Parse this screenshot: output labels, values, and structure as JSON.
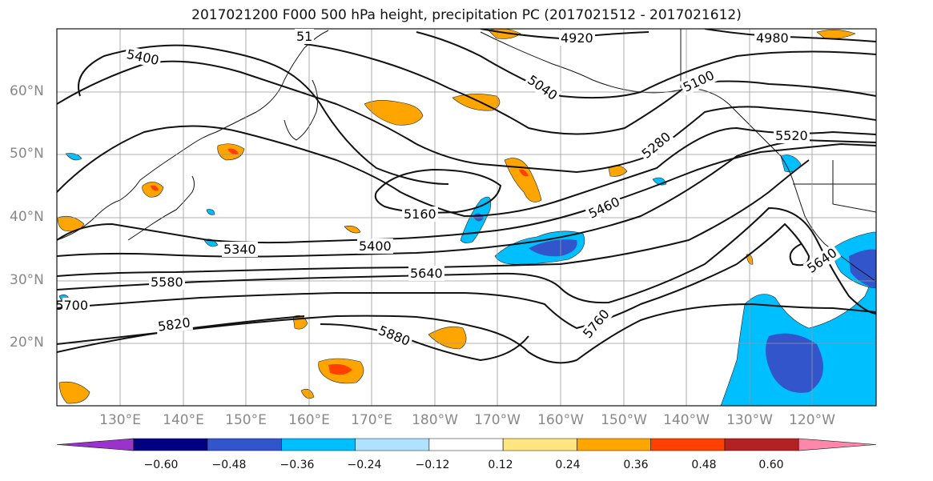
{
  "title": "2017021200 F000 500 hPa height, precipitation PC (2017021512 - 2017021612)",
  "lat_labels": [
    "60°N",
    "50°N",
    "40°N",
    "30°N",
    "20°N"
  ],
  "lon_labels": [
    "130°E",
    "140°E",
    "150°E",
    "160°E",
    "170°E",
    "180°W",
    "170°W",
    "160°W",
    "150°W",
    "140°W",
    "130°W",
    "120°W"
  ],
  "contour_labels": [
    "4920",
    "4980",
    "5040",
    "5100",
    "5160",
    "5280",
    "5340",
    "5400",
    "5400",
    "5460",
    "5520",
    "5580",
    "5640",
    "5640",
    "5700",
    "5760",
    "5820",
    "5880",
    "51"
  ],
  "colorbar": {
    "ticks": [
      "−0.60",
      "−0.48",
      "−0.36",
      "−0.24",
      "−0.12",
      "0.12",
      "0.24",
      "0.36",
      "0.48",
      "0.60"
    ],
    "colors": [
      "#9933cc",
      "#000080",
      "#3355cc",
      "#00bfff",
      "#b0e2ff",
      "#ffffff",
      "#ffe680",
      "#ffa500",
      "#ff4000",
      "#b22222",
      "#ff88aa"
    ]
  }
}
